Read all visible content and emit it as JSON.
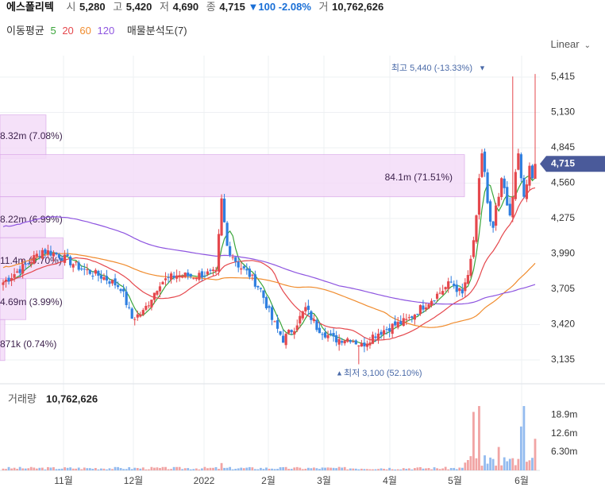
{
  "header": {
    "stock_name": "에스폴리텍",
    "open_label": "시",
    "open": "5,280",
    "high_label": "고",
    "high": "5,420",
    "low_label": "저",
    "low": "4,690",
    "close_label": "종",
    "close": "4,715",
    "change_arrow": "▼",
    "change": "100",
    "change_pct": "-2.08%",
    "volume_label": "거",
    "volume": "10,762,626"
  },
  "moving_average": {
    "label": "이동평균",
    "periods": [
      {
        "value": "5",
        "color": "#3aa53a"
      },
      {
        "value": "20",
        "color": "#e5484d"
      },
      {
        "value": "60",
        "color": "#f08c2e"
      },
      {
        "value": "120",
        "color": "#8e55e0"
      }
    ],
    "profile_label": "매물분석도(7)"
  },
  "scale_button": {
    "label": "Linear",
    "icon": "chevron-down-icon"
  },
  "chart_data": {
    "type": "candlestick",
    "y_ticks": [
      "5,415",
      "5,130",
      "4,845",
      "4,560",
      "4,275",
      "3,990",
      "3,705",
      "3,420",
      "3,135"
    ],
    "y_tick_values": [
      5415,
      5130,
      4845,
      4560,
      4275,
      3990,
      3705,
      3420,
      3135
    ],
    "ylim": [
      3000,
      5560
    ],
    "x_labels": [
      "11월",
      "12월",
      "2022",
      "2월",
      "3월",
      "4월",
      "5월",
      "6월"
    ],
    "current_price": {
      "label": "4,715",
      "value": 4715,
      "color": "#4a5a9a"
    },
    "max_marker": {
      "text": "최고 5,440 (-13.33%)",
      "value": 5440,
      "color": "#4a6aa8"
    },
    "min_marker": {
      "text": "최저 3,100 (52.10%)",
      "value": 3100,
      "color": "#4a6aa8"
    },
    "volume_profile": [
      {
        "label": "8.32m (7.08%)",
        "pct": 7.08,
        "low": 4760,
        "high": 5110
      },
      {
        "label": "84.1m (71.51%)",
        "pct": 71.51,
        "low": 4450,
        "high": 4790
      },
      {
        "label": "8.22m (6.99%)",
        "pct": 6.99,
        "low": 4120,
        "high": 4450
      },
      {
        "label": "11.4m (9.70%)",
        "pct": 9.7,
        "low": 3790,
        "high": 4120
      },
      {
        "label": "4.69m (3.99%)",
        "pct": 3.99,
        "low": 3460,
        "high": 3790
      },
      {
        "label": "871k (0.74%)",
        "pct": 0.74,
        "low": 3130,
        "high": 3460
      }
    ],
    "volume": {
      "label": "거래량",
      "value": "10,762,626",
      "ticks": [
        "18.9m",
        "12.6m",
        "6.30m"
      ],
      "tick_values": [
        18.9,
        12.6,
        6.3
      ],
      "ymax": 25
    },
    "colors": {
      "up": "#e5484d",
      "down": "#2f7fe0",
      "up_vol": "#f1a4a4",
      "down_vol": "#93bbef",
      "profile": "#f4dcf8",
      "profile_border": "#d9a6e8"
    }
  }
}
